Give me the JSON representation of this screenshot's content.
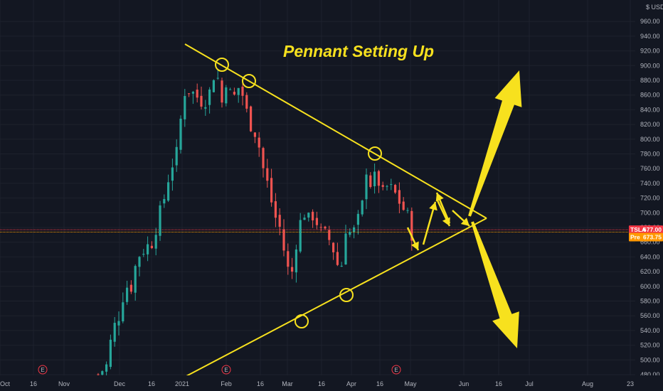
{
  "chart_data": {
    "type": "candlestick",
    "title": "Pennant Setting Up",
    "currency_label": "$ USD",
    "y_ticks": [
      480,
      500,
      520,
      540,
      560,
      580,
      600,
      620,
      640,
      660,
      680,
      700,
      720,
      740,
      760,
      780,
      800,
      820,
      840,
      860,
      880,
      900,
      920,
      940,
      960
    ],
    "y_tick_labels": [
      "480.00",
      "500.00",
      "520.00",
      "540.00",
      "560.00",
      "580.00",
      "600.00",
      "620.00",
      "640.00",
      "660.00",
      "680.00",
      "700.00",
      "720.00",
      "740.00",
      "760.00",
      "780.00",
      "800.00",
      "820.00",
      "840.00",
      "860.00",
      "880.00",
      "900.00",
      "920.00",
      "940.00",
      "960.00"
    ],
    "ylim": [
      474,
      980
    ],
    "x_labels": [
      "Oct",
      "16",
      "Nov",
      "Dec",
      "16",
      "2021",
      "Feb",
      "16",
      "Mar",
      "16",
      "Apr",
      "16",
      "May",
      "Jun",
      "16",
      "Jul",
      "Aug",
      "23"
    ],
    "price_tags": [
      {
        "label": "TSLA",
        "value": "677.00",
        "color": "#f23645"
      },
      {
        "label": "Pre",
        "value": "673.75",
        "color": "#ff9800"
      }
    ],
    "earnings_markers": [
      "E",
      "E",
      "E"
    ],
    "candle_colors": {
      "up": "#26a69a",
      "down": "#ef5350"
    },
    "annotation_color": "#f7e11e",
    "close_path": [
      [
        0,
        480
      ],
      [
        8,
        492
      ],
      [
        14,
        540
      ],
      [
        20,
        560
      ],
      [
        26,
        600
      ],
      [
        32,
        600
      ],
      [
        38,
        640
      ],
      [
        44,
        650
      ],
      [
        52,
        660
      ],
      [
        58,
        690
      ],
      [
        64,
        720
      ],
      [
        70,
        760
      ],
      [
        76,
        780
      ],
      [
        82,
        850
      ],
      [
        86,
        880
      ],
      [
        90,
        855
      ],
      [
        94,
        870
      ],
      [
        98,
        845
      ],
      [
        102,
        860
      ],
      [
        106,
        848
      ],
      [
        110,
        880
      ],
      [
        114,
        895
      ],
      [
        118,
        870
      ],
      [
        120,
        850
      ],
      [
        124,
        880
      ],
      [
        130,
        852
      ],
      [
        136,
        870
      ],
      [
        140,
        860
      ],
      [
        146,
        825
      ],
      [
        152,
        810
      ],
      [
        156,
        790
      ],
      [
        160,
        760
      ],
      [
        166,
        730
      ],
      [
        170,
        700
      ],
      [
        176,
        680
      ],
      [
        180,
        650
      ],
      [
        186,
        610
      ],
      [
        188,
        620
      ],
      [
        194,
        680
      ],
      [
        200,
        700
      ],
      [
        204,
        690
      ],
      [
        210,
        700
      ],
      [
        214,
        675
      ],
      [
        220,
        670
      ],
      [
        226,
        660
      ],
      [
        230,
        640
      ],
      [
        234,
        620
      ],
      [
        236,
        630
      ],
      [
        240,
        680
      ],
      [
        246,
        670
      ],
      [
        250,
        680
      ],
      [
        254,
        700
      ],
      [
        258,
        720
      ],
      [
        260,
        760
      ],
      [
        264,
        740
      ],
      [
        270,
        750
      ],
      [
        276,
        725
      ],
      [
        280,
        735
      ],
      [
        286,
        730
      ],
      [
        290,
        720
      ],
      [
        296,
        705
      ],
      [
        302,
        690
      ],
      [
        304,
        672
      ]
    ]
  }
}
